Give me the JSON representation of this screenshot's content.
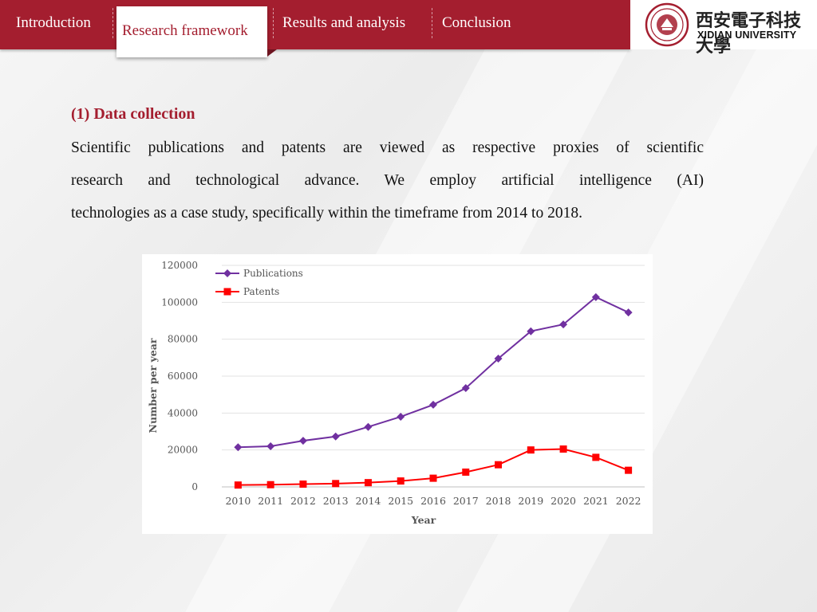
{
  "nav": {
    "tabs": [
      {
        "label": "Introduction"
      },
      {
        "label": "Research framework"
      },
      {
        "label": "Results and analysis"
      },
      {
        "label": "Conclusion"
      }
    ],
    "active_index": 1
  },
  "logo": {
    "cn": "西安電子科技大學",
    "en": "XIDIAN UNIVERSITY"
  },
  "content": {
    "section_title": "(1) Data collection",
    "para_lines": [
      "Scientific publications and patents are viewed as respective proxies of scientific",
      "research and technological advance.   We employ artificial intelligence (AI)",
      "technologies as a case study, specifically within the timeframe from 2014 to 2018."
    ]
  },
  "colors": {
    "brand_red": "#a41e2f",
    "publications": "#7030a0",
    "patents": "#ff0000"
  },
  "chart_data": {
    "type": "line",
    "xlabel": "Year",
    "ylabel": "Number per year",
    "ylim": [
      0,
      120000
    ],
    "yticks": [
      "0",
      "20000",
      "40000",
      "60000",
      "80000",
      "100000",
      "120000"
    ],
    "grid": true,
    "legend": "top-left",
    "x": [
      "2010",
      "2011",
      "2012",
      "2013",
      "2014",
      "2015",
      "2016",
      "2017",
      "2018",
      "2019",
      "2020",
      "2021",
      "2022"
    ],
    "series": [
      {
        "name": "Publications",
        "marker": "diamond",
        "values": [
          21500,
          22000,
          25000,
          27300,
          32500,
          38000,
          44500,
          53500,
          69500,
          84300,
          88000,
          102800,
          94500
        ]
      },
      {
        "name": "Patents",
        "marker": "square",
        "values": [
          1000,
          1200,
          1500,
          1800,
          2300,
          3200,
          4700,
          8000,
          12000,
          20000,
          20500,
          16000,
          9000
        ]
      }
    ]
  }
}
